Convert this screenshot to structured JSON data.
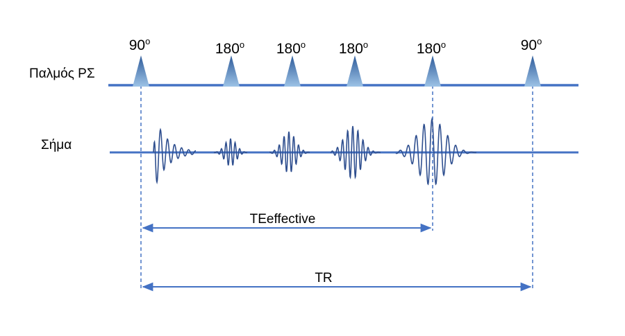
{
  "rows": {
    "rf_label": "Παλμός ΡΣ",
    "signal_label": "Σήμα"
  },
  "pulses": [
    {
      "angle": "90",
      "unit": "o"
    },
    {
      "angle": "180",
      "unit": "o"
    },
    {
      "angle": "180",
      "unit": "o"
    },
    {
      "angle": "180",
      "unit": "o"
    },
    {
      "angle": "180",
      "unit": "o"
    },
    {
      "angle": "90",
      "unit": "o"
    }
  ],
  "echoes": [
    {
      "kind": "fid",
      "peak": "tallest"
    },
    {
      "kind": "echo",
      "peak": "small"
    },
    {
      "kind": "echo",
      "peak": "medium"
    },
    {
      "kind": "echo",
      "peak": "medium"
    },
    {
      "kind": "echo",
      "peak": "largest"
    }
  ],
  "measures": {
    "te_label": "TEeffective",
    "tr_label": "TR"
  },
  "colors": {
    "line": "#4472c4",
    "pulse_top": "#2e5b9a",
    "pulse_bottom": "#9dc3e6",
    "signal": "#2f4f8f"
  }
}
